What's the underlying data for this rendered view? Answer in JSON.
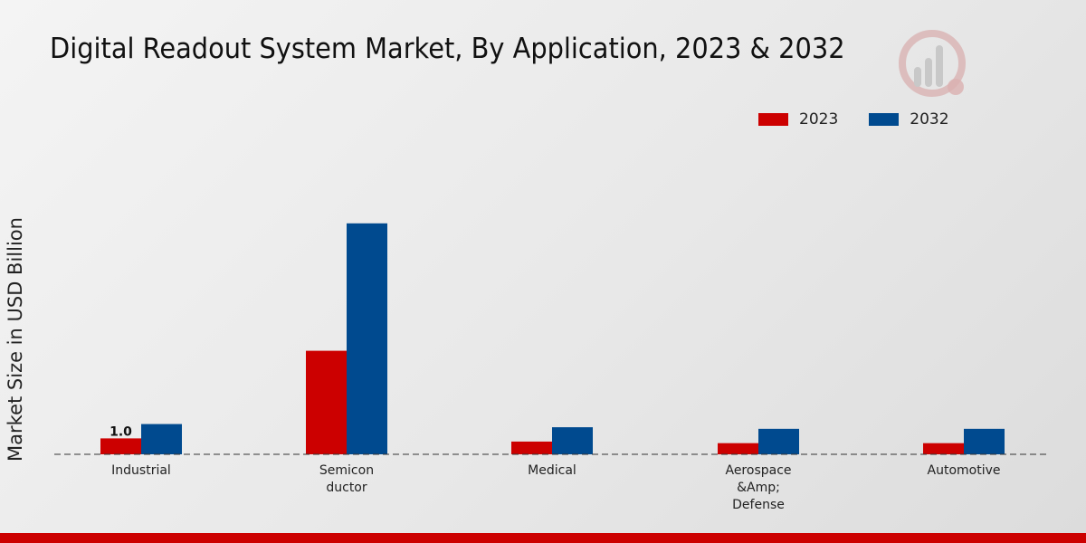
{
  "colors": {
    "series_2023": "#cc0000",
    "series_2032": "#004a8f",
    "footer": "#cc0000"
  },
  "logo": {
    "icon": "market-research-logo-icon"
  },
  "chart_data": {
    "type": "bar",
    "title": "Digital Readout System Market, By Application, 2023 & 2032",
    "xlabel": "",
    "ylabel": "Market Size in USD Billion",
    "categories": [
      [
        "Industrial"
      ],
      [
        "Semicon",
        "ductor"
      ],
      [
        "Medical"
      ],
      [
        "Aerospace",
        "&Amp;",
        "Defense"
      ],
      [
        "Automotive"
      ]
    ],
    "series": [
      {
        "name": "2023",
        "values": [
          1.0,
          6.5,
          0.8,
          0.7,
          0.7
        ]
      },
      {
        "name": "2032",
        "values": [
          1.9,
          14.5,
          1.7,
          1.6,
          1.6
        ]
      }
    ],
    "data_labels": [
      {
        "series": 0,
        "index": 0,
        "text": "1.0"
      }
    ],
    "ylim": [
      0,
      20
    ],
    "grid": false,
    "legend_position": "top-right"
  }
}
